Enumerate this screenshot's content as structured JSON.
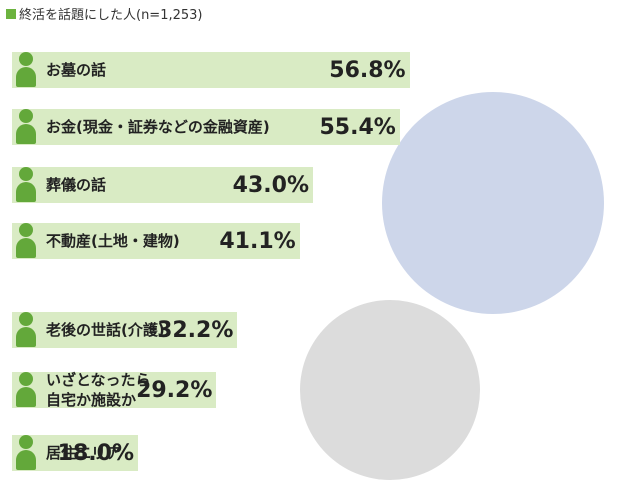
{
  "chart_data": {
    "type": "bar",
    "orientation": "horizontal",
    "title": "終活を話題にした人(n=1,253)",
    "categories": [
      "お墓の話",
      "お金(現金・証券などの金融資産)",
      "葬儀の話",
      "不動産(土地・建物)",
      "老後の世話(介護)",
      "いざとなったら\n自宅か施設か",
      "居住エリア"
    ],
    "values": [
      56.8,
      55.4,
      43.0,
      41.1,
      32.2,
      29.2,
      18.0
    ],
    "value_labels": [
      "56.8%",
      "55.4%",
      "43.0%",
      "41.1%",
      "32.2%",
      "29.2%",
      "18.0%"
    ],
    "color": "#d9ebc4"
  }
}
